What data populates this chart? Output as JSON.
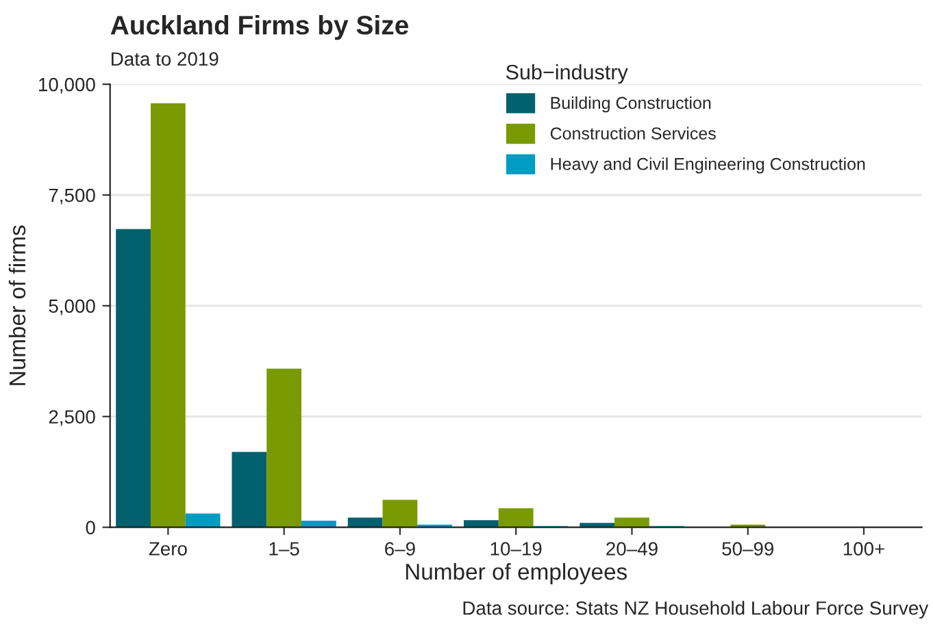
{
  "chart_data": {
    "type": "bar",
    "title": "Auckland Firms by Size",
    "subtitle": "Data to 2019",
    "xlabel": "Number of employees",
    "ylabel": "Number of firms",
    "legend_title": "Sub−industry",
    "categories": [
      "Zero",
      "1–5",
      "6–9",
      "10–19",
      "20–49",
      "50–99",
      "100+"
    ],
    "series": [
      {
        "name": "Building Construction",
        "color": "#03606f",
        "values": [
          6730,
          1700,
          220,
          160,
          100,
          null,
          null
        ]
      },
      {
        "name": "Construction Services",
        "color": "#7a9a01",
        "values": [
          9570,
          3580,
          620,
          430,
          220,
          60,
          null
        ]
      },
      {
        "name": "Heavy and Civil Engineering Construction",
        "color": "#009cc2",
        "values": [
          310,
          150,
          60,
          30,
          30,
          null,
          null
        ]
      }
    ],
    "ylim": [
      0,
      10000
    ],
    "yticks": [
      0,
      {
        "value": 2500,
        "label": "2,500"
      },
      {
        "value": 5000,
        "label": "5,000"
      },
      {
        "value": 7500,
        "label": "7,500"
      },
      {
        "value": 10000,
        "label": "10,000"
      }
    ],
    "grid": "y",
    "legend": "top right",
    "annotations": [
      "Data source: Stats NZ Household Labour Force Survey"
    ]
  }
}
